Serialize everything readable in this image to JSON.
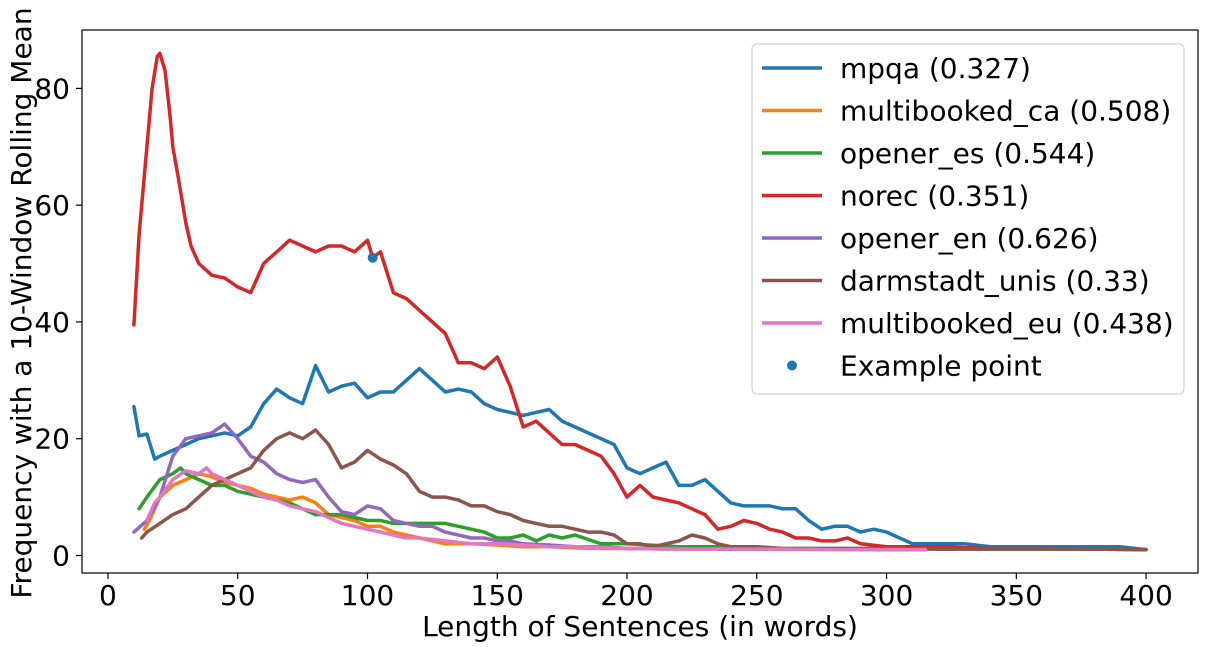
{
  "chart_data": {
    "type": "line",
    "title": "",
    "xlabel": "Length of Sentences (in words)",
    "ylabel": "Frequency with a 10-Window Rolling Mean",
    "xlim": [
      -10,
      420
    ],
    "ylim": [
      -3,
      90
    ],
    "xticks": [
      0,
      50,
      100,
      150,
      200,
      250,
      300,
      350,
      400
    ],
    "yticks": [
      0,
      20,
      40,
      60,
      80
    ],
    "grid": false,
    "legend_position": "top-right",
    "series": [
      {
        "name": "mpqa (0.327)",
        "color": "#1f77b4",
        "x": [
          10,
          12,
          15,
          18,
          20,
          25,
          30,
          35,
          40,
          45,
          50,
          55,
          60,
          65,
          70,
          75,
          80,
          85,
          90,
          95,
          100,
          105,
          110,
          115,
          120,
          125,
          130,
          135,
          140,
          145,
          150,
          155,
          160,
          165,
          170,
          175,
          180,
          185,
          190,
          195,
          200,
          205,
          210,
          215,
          220,
          225,
          230,
          235,
          240,
          245,
          250,
          255,
          260,
          265,
          270,
          275,
          280,
          285,
          290,
          295,
          300,
          310,
          320,
          330,
          340,
          350,
          360,
          370,
          380,
          390,
          400
        ],
        "y": [
          25.5,
          20.5,
          20.8,
          16.5,
          17,
          18,
          19,
          20,
          20.5,
          21,
          20.5,
          22,
          26,
          28.5,
          27,
          26,
          32.5,
          28,
          29,
          29.5,
          27,
          28,
          28,
          30,
          32,
          30,
          28,
          28.5,
          28,
          26,
          25,
          24.5,
          24,
          24.5,
          25,
          23,
          22,
          21,
          20,
          19,
          15,
          14,
          15,
          16,
          12,
          12,
          13,
          11,
          9,
          8.5,
          8.5,
          8.5,
          8,
          8,
          6,
          4.5,
          5,
          5,
          4,
          4.5,
          4,
          2,
          2,
          2,
          1.5,
          1.5,
          1.5,
          1.5,
          1.5,
          1.5,
          1
        ]
      },
      {
        "name": "multibooked_ca (0.508)",
        "color": "#ff7f0e",
        "x": [
          14,
          16,
          20,
          25,
          30,
          35,
          40,
          45,
          50,
          55,
          60,
          65,
          70,
          75,
          80,
          85,
          90,
          95,
          100,
          105,
          110,
          115,
          120,
          125,
          130,
          140,
          150,
          160,
          170,
          180,
          190,
          200,
          220,
          240,
          260,
          280,
          300,
          315
        ],
        "y": [
          4.5,
          6,
          10,
          12,
          13,
          14,
          13.5,
          12.5,
          12,
          11.5,
          10.5,
          10,
          9.5,
          10,
          9,
          7,
          6.5,
          6,
          5,
          5,
          4,
          3.5,
          3,
          2.5,
          2,
          2,
          1.8,
          1.5,
          1.5,
          1.3,
          1.2,
          1.2,
          1.1,
          1.1,
          1.1,
          1.1,
          1,
          1
        ]
      },
      {
        "name": "opener_es (0.544)",
        "color": "#2ca02c",
        "x": [
          12,
          15,
          20,
          25,
          28,
          30,
          35,
          40,
          45,
          50,
          55,
          60,
          65,
          70,
          75,
          80,
          85,
          90,
          95,
          100,
          105,
          110,
          115,
          120,
          125,
          130,
          135,
          140,
          145,
          150,
          155,
          160,
          165,
          170,
          175,
          180,
          190,
          200,
          220,
          240,
          260,
          280,
          300,
          320,
          340,
          360,
          380,
          400
        ],
        "y": [
          8,
          10,
          13,
          14,
          15,
          14,
          13,
          12,
          12,
          11,
          10.5,
          10,
          9.5,
          9,
          8,
          7,
          7,
          7,
          6.5,
          6,
          6,
          5.5,
          5.5,
          5.5,
          5.5,
          5.5,
          5,
          4.5,
          4,
          3,
          3,
          3.5,
          2.5,
          3.5,
          3,
          3.5,
          2,
          2,
          1.5,
          1.5,
          1.2,
          1.2,
          1.2,
          1.1,
          1.1,
          1.1,
          1.1,
          1
        ]
      },
      {
        "name": "norec (0.351)",
        "color": "#d62728",
        "x": [
          10,
          12,
          15,
          17,
          19,
          20,
          22,
          24,
          25,
          27,
          30,
          32,
          35,
          40,
          45,
          50,
          55,
          60,
          65,
          70,
          75,
          80,
          85,
          90,
          95,
          100,
          102,
          105,
          110,
          115,
          120,
          125,
          130,
          135,
          140,
          145,
          150,
          155,
          160,
          165,
          170,
          175,
          180,
          185,
          190,
          195,
          200,
          205,
          210,
          215,
          220,
          225,
          230,
          235,
          240,
          245,
          250,
          255,
          260,
          265,
          270,
          275,
          280,
          285,
          290,
          300,
          320,
          340,
          360,
          380,
          400
        ],
        "y": [
          39.5,
          55,
          70,
          80,
          85.5,
          86,
          83,
          75,
          70,
          65,
          57,
          53,
          50,
          48,
          47.5,
          46,
          45,
          50,
          52,
          54,
          53,
          52,
          53,
          53,
          52,
          54,
          51,
          52,
          45,
          44,
          42,
          40,
          38,
          33,
          33,
          32,
          34,
          29,
          22,
          23,
          21,
          19,
          19,
          18,
          17,
          14,
          10,
          12,
          10,
          9.5,
          9,
          8,
          7,
          4.5,
          5,
          6,
          5.5,
          4.5,
          4,
          3,
          3,
          2.5,
          2.5,
          3,
          2,
          1.5,
          1.5,
          1.2,
          1.2,
          1.1,
          1
        ]
      },
      {
        "name": "opener_en (0.626)",
        "color": "#9467bd",
        "x": [
          10,
          15,
          20,
          25,
          30,
          35,
          40,
          45,
          48,
          50,
          55,
          60,
          65,
          70,
          75,
          80,
          85,
          90,
          95,
          100,
          105,
          110,
          115,
          120,
          125,
          130,
          135,
          140,
          145,
          150,
          155,
          160,
          170,
          180,
          190,
          200,
          220,
          240,
          260,
          280,
          300,
          315
        ],
        "y": [
          4,
          6,
          10,
          17,
          20,
          20.5,
          21,
          22.5,
          21,
          20,
          17,
          16,
          14,
          13,
          12.5,
          13,
          10,
          7.5,
          7,
          8.5,
          8,
          6,
          5.5,
          5,
          5,
          4,
          3.5,
          3,
          3,
          2.5,
          2.5,
          2,
          1.8,
          1.5,
          1.5,
          1.2,
          1.2,
          1.1,
          1.1,
          1.1,
          1,
          1
        ]
      },
      {
        "name": "darmstadt_unis (0.33)",
        "color": "#8c564b",
        "x": [
          13,
          15,
          20,
          25,
          30,
          35,
          40,
          45,
          50,
          55,
          60,
          65,
          70,
          75,
          80,
          85,
          90,
          95,
          100,
          105,
          110,
          115,
          120,
          125,
          130,
          135,
          140,
          145,
          150,
          155,
          160,
          165,
          170,
          175,
          180,
          185,
          190,
          195,
          200,
          205,
          210,
          215,
          220,
          225,
          230,
          235,
          240,
          250,
          260,
          280,
          300,
          320,
          340,
          360,
          380,
          400
        ],
        "y": [
          3,
          4,
          5.5,
          7,
          8,
          10,
          12,
          13,
          14,
          15,
          18,
          20,
          21,
          20,
          21.5,
          19,
          15,
          16,
          18,
          16.5,
          15.5,
          14,
          11,
          10,
          10,
          9.5,
          8.5,
          8.5,
          7.5,
          7,
          6,
          5.5,
          5,
          5,
          4.5,
          4,
          4,
          3.5,
          2,
          2,
          1.5,
          2,
          2.5,
          3.5,
          3,
          2,
          1.5,
          1.5,
          1.2,
          1.2,
          1.2,
          1.1,
          1.1,
          1.1,
          1.1,
          1
        ]
      },
      {
        "name": "multibooked_eu (0.438)",
        "color": "#e377c2",
        "x": [
          15,
          18,
          20,
          25,
          30,
          35,
          38,
          40,
          45,
          50,
          55,
          60,
          65,
          70,
          75,
          80,
          85,
          90,
          95,
          100,
          105,
          110,
          115,
          120,
          130,
          140,
          150,
          160,
          170,
          180,
          200,
          220,
          240,
          260,
          280,
          300,
          315
        ],
        "y": [
          6,
          9,
          10,
          13,
          14.5,
          14,
          15,
          14,
          13,
          12,
          11,
          10,
          9.5,
          8.5,
          8,
          7.5,
          6.5,
          5.5,
          5,
          4.5,
          4,
          3.5,
          3,
          3,
          2.5,
          2,
          2,
          1.8,
          1.5,
          1.5,
          1.2,
          1.1,
          1.1,
          1.1,
          1,
          1,
          1
        ]
      }
    ],
    "points": [
      {
        "name": "Example point",
        "color": "#1f77b4",
        "x": 102,
        "y": 51
      }
    ]
  }
}
